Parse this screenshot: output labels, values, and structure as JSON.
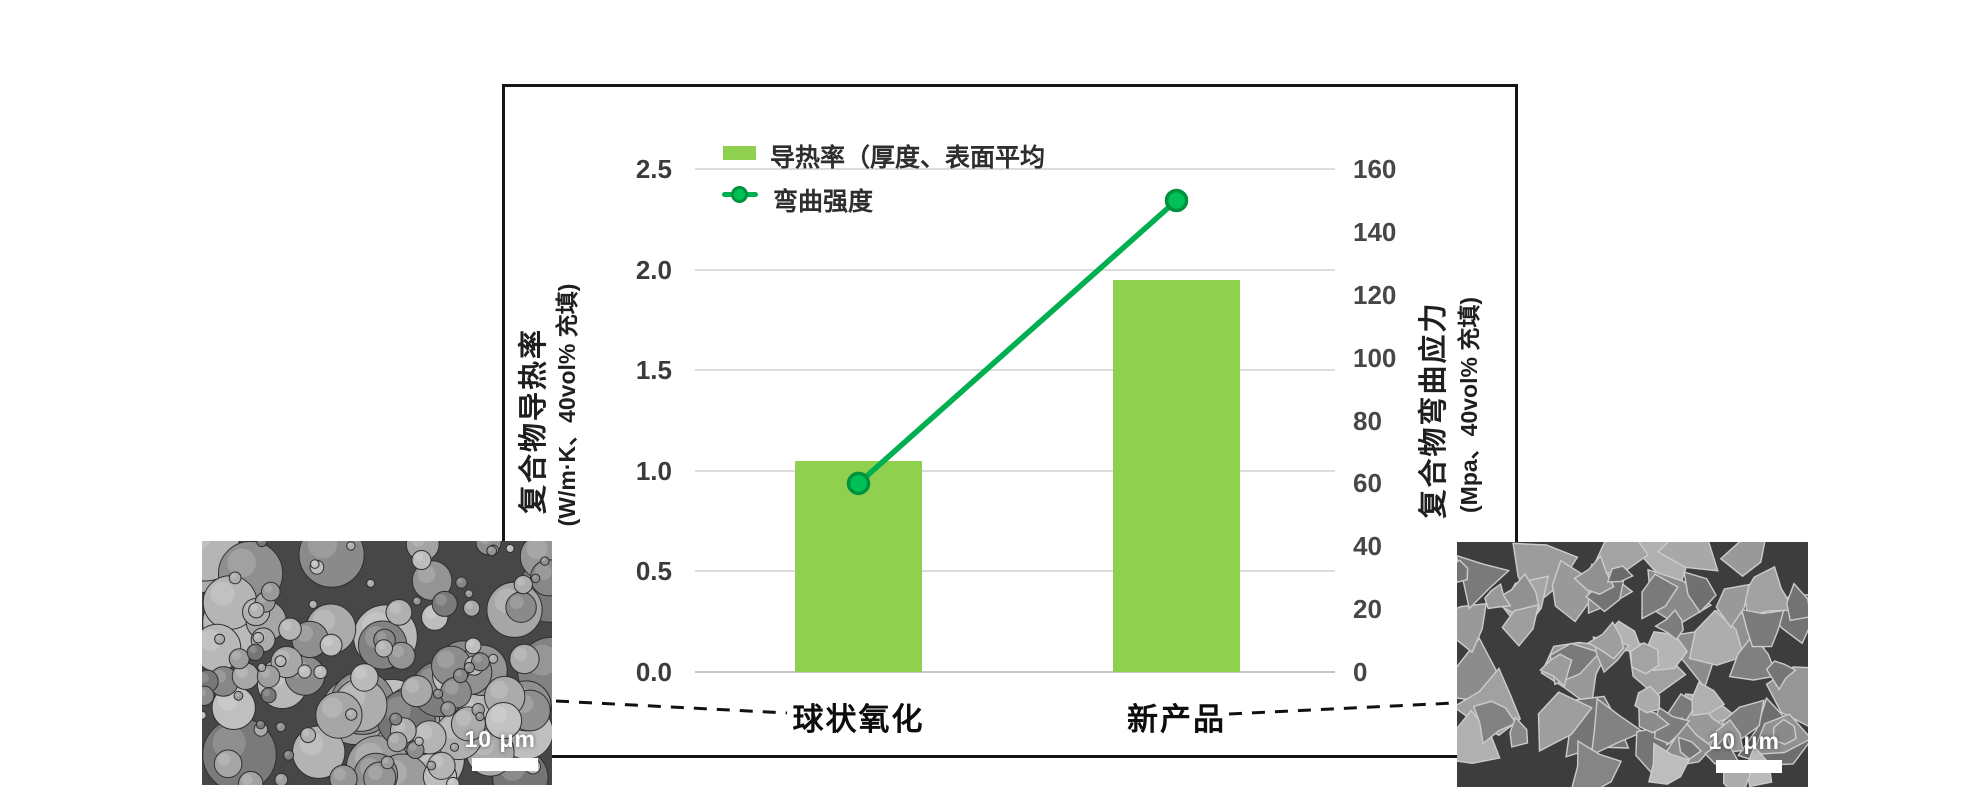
{
  "legend": {
    "items": [
      {
        "label": "导热率（厚度、表面平均",
        "marker": "bar-swatch",
        "color": "#8FD04F"
      },
      {
        "label": "弯曲强度",
        "marker": "line-dot",
        "color": "#00AF50"
      }
    ]
  },
  "axes": {
    "left": {
      "title": "复合物导热率",
      "subtitle": "(W/m·K、40vol% 充填)",
      "ticks": [
        "0.0",
        "0.5",
        "1.0",
        "1.5",
        "2.0",
        "2.5"
      ]
    },
    "right": {
      "title": "复合物弯曲应力",
      "subtitle": "(Mpa、40vol% 充填)",
      "ticks": [
        "0",
        "20",
        "40",
        "60",
        "80",
        "100",
        "120",
        "140",
        "160"
      ]
    }
  },
  "categories": [
    "球状氧化",
    "新产品"
  ],
  "sem": {
    "left": {
      "caption": "10 μm",
      "type": "spherical particles"
    },
    "right": {
      "caption": "10 μm",
      "type": "angular flakes"
    }
  },
  "chart_data": {
    "type": "bar+line",
    "categories": [
      "球状氧化",
      "新产品"
    ],
    "series": [
      {
        "name": "导热率（厚度、表面平均",
        "type": "bar",
        "axis": "left",
        "unit": "W/m·K",
        "values": [
          1.05,
          1.95
        ],
        "color": "#8FD04F"
      },
      {
        "name": "弯曲强度",
        "type": "line",
        "axis": "right",
        "unit": "MPa",
        "values": [
          60,
          150
        ],
        "color": "#00AF50"
      }
    ],
    "left_axis": {
      "label": "复合物导热率 (W/m·K、40vol% 充填)",
      "range": [
        0,
        2.5
      ],
      "tick_step": 0.5
    },
    "right_axis": {
      "label": "复合物弯曲应力 (Mpa、40vol% 充填)",
      "range": [
        0,
        160
      ],
      "tick_step": 20
    },
    "grid": true,
    "legend_position": "top-left"
  }
}
